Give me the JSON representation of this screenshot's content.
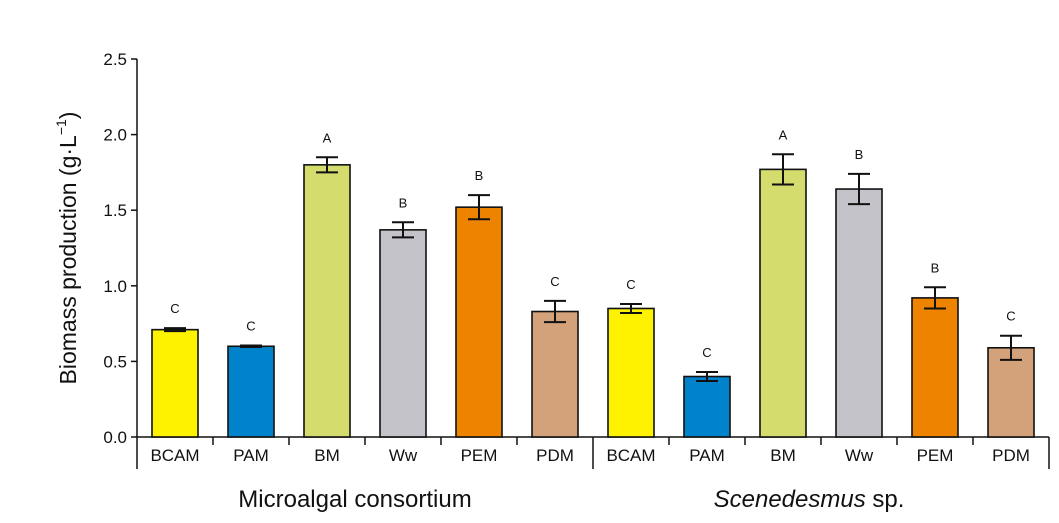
{
  "chart_data": {
    "type": "bar",
    "ylabel": "Biomass production (g·L",
    "ylabel_exponent": "−1",
    "ylabel_suffix": ")",
    "ylim": [
      0,
      2.5
    ],
    "yticks": [
      "0.0",
      "0.5",
      "1.0",
      "1.5",
      "2.0",
      "2.5"
    ],
    "ytick_values": [
      0,
      0.5,
      1.0,
      1.5,
      2.0,
      2.5
    ],
    "groups": [
      {
        "name": "Microalgal consortium",
        "name_italic": "",
        "name_suffix": "",
        "categories": [
          "BCAM",
          "PAM",
          "BM",
          "Ww",
          "PEM",
          "PDM"
        ],
        "values": [
          0.71,
          0.6,
          1.8,
          1.37,
          1.52,
          0.83
        ],
        "errors": [
          0.01,
          0.005,
          0.05,
          0.05,
          0.08,
          0.07
        ],
        "significance": [
          "C",
          "C",
          "A",
          "B",
          "B",
          "C"
        ]
      },
      {
        "name": "",
        "name_italic": "Scenedesmus",
        "name_suffix": " sp.",
        "categories": [
          "BCAM",
          "PAM",
          "BM",
          "Ww",
          "PEM",
          "PDM"
        ],
        "values": [
          0.85,
          0.4,
          1.77,
          1.64,
          0.92,
          0.59
        ],
        "errors": [
          0.03,
          0.03,
          0.1,
          0.1,
          0.07,
          0.08
        ],
        "significance": [
          "C",
          "C",
          "A",
          "B",
          "B",
          "C"
        ]
      }
    ],
    "colors": {
      "BCAM": "#fff200",
      "PAM": "#0083ca",
      "BM": "#d4dc6e",
      "Ww": "#c4c3c9",
      "PEM": "#ee8300",
      "PDM": "#d3a27b"
    },
    "grid": false
  }
}
